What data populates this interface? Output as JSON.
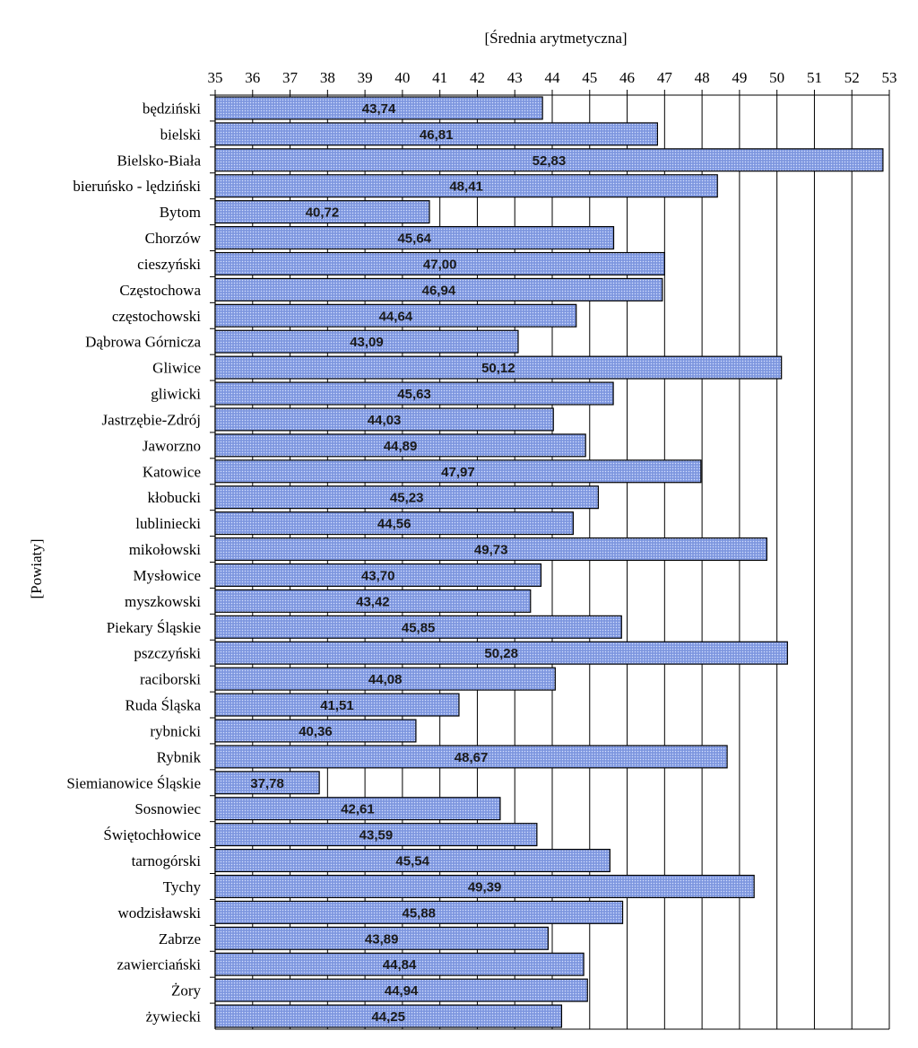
{
  "chart_data": {
    "type": "bar",
    "orientation": "horizontal",
    "xlabel": "[Średnia arytmetyczna]",
    "ylabel": "[Powiaty]",
    "xlim": [
      35,
      53
    ],
    "ticks": [
      "35",
      "36",
      "37",
      "38",
      "39",
      "40",
      "41",
      "42",
      "43",
      "44",
      "45",
      "46",
      "47",
      "48",
      "49",
      "50",
      "51",
      "52",
      "53"
    ],
    "grid": true,
    "bar_color": "#8aa2e6",
    "categories": [
      "będziński",
      "bielski",
      "Bielsko-Biała",
      "bieruńsko - lędziński",
      "Bytom",
      "Chorzów",
      "cieszyński",
      "Częstochowa",
      "częstochowski",
      "Dąbrowa Górnicza",
      "Gliwice",
      "gliwicki",
      "Jastrzębie-Zdrój",
      "Jaworzno",
      "Katowice",
      "kłobucki",
      "lubliniecki",
      "mikołowski",
      "Mysłowice",
      "myszkowski",
      "Piekary Śląskie",
      "pszczyński",
      "raciborski",
      "Ruda Śląska",
      "rybnicki",
      "Rybnik",
      "Siemianowice Śląskie",
      "Sosnowiec",
      "Świętochłowice",
      "tarnogórski",
      "Tychy",
      "wodzisławski",
      "Zabrze",
      "zawierciański",
      "Żory",
      "żywiecki"
    ],
    "values": [
      43.74,
      46.81,
      52.83,
      48.41,
      40.72,
      45.64,
      47.0,
      46.94,
      44.64,
      43.09,
      50.12,
      45.63,
      44.03,
      44.89,
      47.97,
      45.23,
      44.56,
      49.73,
      43.7,
      43.42,
      45.85,
      50.28,
      44.08,
      41.51,
      40.36,
      48.67,
      37.78,
      42.61,
      43.59,
      45.54,
      49.39,
      45.88,
      43.89,
      44.84,
      44.94,
      44.25
    ],
    "value_labels": [
      "43,74",
      "46,81",
      "52,83",
      "48,41",
      "40,72",
      "45,64",
      "47,00",
      "46,94",
      "44,64",
      "43,09",
      "50,12",
      "45,63",
      "44,03",
      "44,89",
      "47,97",
      "45,23",
      "44,56",
      "49,73",
      "43,70",
      "43,42",
      "45,85",
      "50,28",
      "44,08",
      "41,51",
      "40,36",
      "48,67",
      "37,78",
      "42,61",
      "43,59",
      "45,54",
      "49,39",
      "45,88",
      "43,89",
      "44,84",
      "44,94",
      "44,25"
    ]
  }
}
